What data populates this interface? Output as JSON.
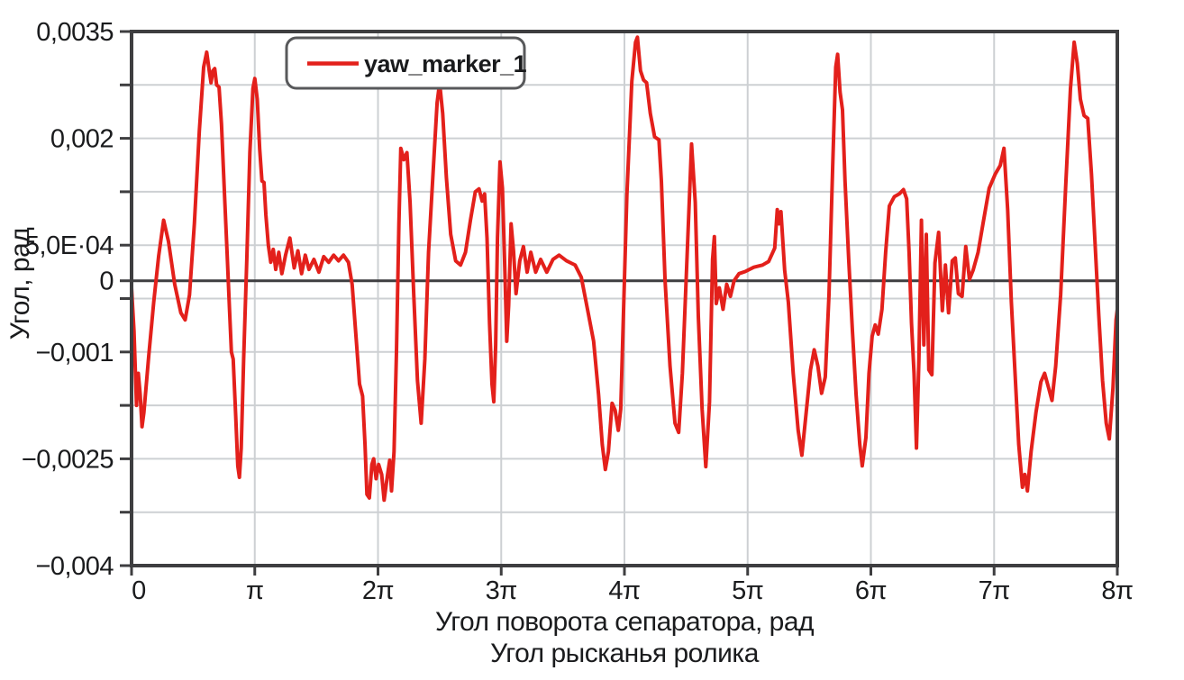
{
  "figure": {
    "background_color": "#ffffff",
    "text_color": "#1a1b1d",
    "frame_color": "#3e3e40",
    "gridline_color": "#cdd0d3"
  },
  "legend": {
    "label": "yaw_marker_1",
    "line_color": "#e3201b",
    "border_color": "#58595b",
    "fill": "#ffffff"
  },
  "chart_data": {
    "type": "line",
    "title": "",
    "xlabel_line1": "Угол поворота сепаратора, рад",
    "xlabel_line2": "Угол рысканья ролика",
    "ylabel": "Угол, рад",
    "x_unit": "multiples of π (rad)",
    "y_unit": "1e-3 rad",
    "xlim_pi": [
      0,
      8
    ],
    "ylim": [
      -4.0,
      3.5
    ],
    "grid": true,
    "y_gridline_step": 0.75,
    "legend_position": "top-left-inside",
    "x_ticks": [
      {
        "v": 0,
        "label": "0"
      },
      {
        "v": 1,
        "label": "π"
      },
      {
        "v": 2,
        "label": "2π"
      },
      {
        "v": 3,
        "label": "3π"
      },
      {
        "v": 4,
        "label": "4π"
      },
      {
        "v": 5,
        "label": "5π"
      },
      {
        "v": 6,
        "label": "6π"
      },
      {
        "v": 7,
        "label": "7π"
      },
      {
        "v": 8,
        "label": "8π"
      }
    ],
    "y_ticks": [
      {
        "v": 3.5,
        "label": "0,0035"
      },
      {
        "v": 2.75,
        "label": ""
      },
      {
        "v": 2.0,
        "label": "0,002"
      },
      {
        "v": 1.25,
        "label": ""
      },
      {
        "v": 0.5,
        "label": "5,0E·04"
      },
      {
        "v": 0.0,
        "label": "0",
        "zero_line": true
      },
      {
        "v": -0.25,
        "label": ""
      },
      {
        "v": -1.0,
        "label": "−0,001"
      },
      {
        "v": -1.75,
        "label": ""
      },
      {
        "v": -2.5,
        "label": "−0,0025"
      },
      {
        "v": -3.25,
        "label": ""
      },
      {
        "v": -4.0,
        "label": "−0,004"
      }
    ],
    "series": [
      {
        "name": "yaw_marker_1",
        "color": "#e3201b",
        "stroke_width": 4,
        "points": [
          [
            0.0,
            -0.1
          ],
          [
            0.02,
            -0.7
          ],
          [
            0.04,
            -1.75
          ],
          [
            0.055,
            -1.3
          ],
          [
            0.07,
            -1.6
          ],
          [
            0.085,
            -2.05
          ],
          [
            0.1,
            -1.85
          ],
          [
            0.14,
            -1.05
          ],
          [
            0.18,
            -0.3
          ],
          [
            0.22,
            0.35
          ],
          [
            0.26,
            0.85
          ],
          [
            0.3,
            0.55
          ],
          [
            0.35,
            -0.05
          ],
          [
            0.4,
            -0.45
          ],
          [
            0.435,
            -0.55
          ],
          [
            0.47,
            -0.2
          ],
          [
            0.51,
            0.8
          ],
          [
            0.55,
            2.1
          ],
          [
            0.585,
            3.0
          ],
          [
            0.61,
            3.21
          ],
          [
            0.63,
            2.95
          ],
          [
            0.645,
            2.78
          ],
          [
            0.66,
            2.95
          ],
          [
            0.675,
            2.98
          ],
          [
            0.69,
            2.75
          ],
          [
            0.71,
            2.72
          ],
          [
            0.73,
            2.2
          ],
          [
            0.755,
            1.2
          ],
          [
            0.775,
            0.4
          ],
          [
            0.795,
            -0.4
          ],
          [
            0.81,
            -1.0
          ],
          [
            0.825,
            -1.1
          ],
          [
            0.845,
            -1.9
          ],
          [
            0.862,
            -2.6
          ],
          [
            0.875,
            -2.76
          ],
          [
            0.89,
            -2.35
          ],
          [
            0.91,
            -1.1
          ],
          [
            0.935,
            0.3
          ],
          [
            0.96,
            1.8
          ],
          [
            0.985,
            2.7
          ],
          [
            1.0,
            2.84
          ],
          [
            1.02,
            2.55
          ],
          [
            1.04,
            1.85
          ],
          [
            1.058,
            1.4
          ],
          [
            1.075,
            1.38
          ],
          [
            1.09,
            0.92
          ],
          [
            1.11,
            0.5
          ],
          [
            1.13,
            0.26
          ],
          [
            1.15,
            0.44
          ],
          [
            1.17,
            0.16
          ],
          [
            1.195,
            0.4
          ],
          [
            1.22,
            0.1
          ],
          [
            1.25,
            0.36
          ],
          [
            1.285,
            0.6
          ],
          [
            1.32,
            0.18
          ],
          [
            1.35,
            0.42
          ],
          [
            1.38,
            0.1
          ],
          [
            1.41,
            0.36
          ],
          [
            1.44,
            0.16
          ],
          [
            1.48,
            0.3
          ],
          [
            1.52,
            0.12
          ],
          [
            1.56,
            0.34
          ],
          [
            1.6,
            0.26
          ],
          [
            1.64,
            0.36
          ],
          [
            1.68,
            0.28
          ],
          [
            1.72,
            0.36
          ],
          [
            1.76,
            0.26
          ],
          [
            1.79,
            -0.05
          ],
          [
            1.82,
            -0.75
          ],
          [
            1.85,
            -1.45
          ],
          [
            1.875,
            -1.62
          ],
          [
            1.895,
            -2.3
          ],
          [
            1.91,
            -3.0
          ],
          [
            1.93,
            -3.05
          ],
          [
            1.95,
            -2.58
          ],
          [
            1.965,
            -2.5
          ],
          [
            1.985,
            -2.78
          ],
          [
            2.005,
            -2.58
          ],
          [
            2.03,
            -2.72
          ],
          [
            2.05,
            -3.08
          ],
          [
            2.075,
            -2.75
          ],
          [
            2.095,
            -2.52
          ],
          [
            2.11,
            -2.95
          ],
          [
            2.13,
            -2.4
          ],
          [
            2.15,
            -1.0
          ],
          [
            2.17,
            0.8
          ],
          [
            2.185,
            1.86
          ],
          [
            2.21,
            1.7
          ],
          [
            2.235,
            1.8
          ],
          [
            2.26,
            1.1
          ],
          [
            2.29,
            -0.2
          ],
          [
            2.32,
            -1.4
          ],
          [
            2.35,
            -2.0
          ],
          [
            2.38,
            -1.1
          ],
          [
            2.41,
            0.4
          ],
          [
            2.45,
            1.6
          ],
          [
            2.48,
            2.5
          ],
          [
            2.5,
            2.78
          ],
          [
            2.525,
            2.35
          ],
          [
            2.555,
            1.45
          ],
          [
            2.59,
            0.65
          ],
          [
            2.63,
            0.28
          ],
          [
            2.67,
            0.22
          ],
          [
            2.71,
            0.4
          ],
          [
            2.75,
            0.85
          ],
          [
            2.79,
            1.25
          ],
          [
            2.82,
            1.29
          ],
          [
            2.845,
            1.12
          ],
          [
            2.865,
            1.22
          ],
          [
            2.885,
            0.6
          ],
          [
            2.905,
            -0.6
          ],
          [
            2.925,
            -1.45
          ],
          [
            2.94,
            -1.7
          ],
          [
            2.955,
            -0.9
          ],
          [
            2.97,
            0.6
          ],
          [
            2.99,
            1.67
          ],
          [
            3.01,
            1.3
          ],
          [
            3.03,
            0.1
          ],
          [
            3.045,
            -0.85
          ],
          [
            3.06,
            -0.35
          ],
          [
            3.08,
            0.8
          ],
          [
            3.1,
            0.42
          ],
          [
            3.12,
            -0.18
          ],
          [
            3.15,
            0.28
          ],
          [
            3.18,
            0.48
          ],
          [
            3.21,
            0.12
          ],
          [
            3.24,
            0.4
          ],
          [
            3.28,
            0.12
          ],
          [
            3.32,
            0.3
          ],
          [
            3.37,
            0.12
          ],
          [
            3.42,
            0.3
          ],
          [
            3.47,
            0.36
          ],
          [
            3.53,
            0.28
          ],
          [
            3.6,
            0.22
          ],
          [
            3.65,
            0.05
          ],
          [
            3.7,
            -0.4
          ],
          [
            3.75,
            -0.85
          ],
          [
            3.79,
            -1.6
          ],
          [
            3.82,
            -2.3
          ],
          [
            3.845,
            -2.65
          ],
          [
            3.87,
            -2.4
          ],
          [
            3.9,
            -1.72
          ],
          [
            3.925,
            -1.82
          ],
          [
            3.95,
            -2.1
          ],
          [
            3.97,
            -1.8
          ],
          [
            3.99,
            -0.6
          ],
          [
            4.02,
            1.2
          ],
          [
            4.06,
            2.8
          ],
          [
            4.09,
            3.35
          ],
          [
            4.105,
            3.42
          ],
          [
            4.13,
            2.95
          ],
          [
            4.155,
            2.82
          ],
          [
            4.18,
            2.78
          ],
          [
            4.21,
            2.35
          ],
          [
            4.245,
            2.02
          ],
          [
            4.28,
            1.98
          ],
          [
            4.3,
            1.4
          ],
          [
            4.33,
            0.0
          ],
          [
            4.37,
            -1.2
          ],
          [
            4.41,
            -2.0
          ],
          [
            4.44,
            -2.13
          ],
          [
            4.47,
            -1.3
          ],
          [
            4.51,
            0.4
          ],
          [
            4.545,
            1.92
          ],
          [
            4.575,
            1.1
          ],
          [
            4.6,
            -0.5
          ],
          [
            4.63,
            -1.8
          ],
          [
            4.66,
            -2.61
          ],
          [
            4.69,
            -1.7
          ],
          [
            4.715,
            0.3
          ],
          [
            4.73,
            0.62
          ],
          [
            4.745,
            -0.32
          ],
          [
            4.77,
            -0.1
          ],
          [
            4.8,
            -0.4
          ],
          [
            4.83,
            -0.05
          ],
          [
            4.86,
            -0.22
          ],
          [
            4.89,
            0.0
          ],
          [
            4.93,
            0.1
          ],
          [
            4.98,
            0.13
          ],
          [
            5.05,
            0.19
          ],
          [
            5.12,
            0.22
          ],
          [
            5.17,
            0.27
          ],
          [
            5.22,
            0.46
          ],
          [
            5.24,
            1.0
          ],
          [
            5.255,
            0.8
          ],
          [
            5.27,
            0.97
          ],
          [
            5.3,
            0.15
          ],
          [
            5.33,
            -0.3
          ],
          [
            5.37,
            -1.3
          ],
          [
            5.41,
            -2.1
          ],
          [
            5.44,
            -2.45
          ],
          [
            5.475,
            -1.85
          ],
          [
            5.51,
            -1.25
          ],
          [
            5.54,
            -0.97
          ],
          [
            5.57,
            -1.2
          ],
          [
            5.6,
            -1.58
          ],
          [
            5.63,
            -1.35
          ],
          [
            5.66,
            -0.2
          ],
          [
            5.69,
            1.6
          ],
          [
            5.715,
            3.0
          ],
          [
            5.73,
            3.18
          ],
          [
            5.75,
            2.65
          ],
          [
            5.77,
            2.4
          ],
          [
            5.79,
            1.4
          ],
          [
            5.82,
            0.3
          ],
          [
            5.85,
            -0.7
          ],
          [
            5.88,
            -1.6
          ],
          [
            5.91,
            -2.3
          ],
          [
            5.93,
            -2.6
          ],
          [
            5.96,
            -2.2
          ],
          [
            5.985,
            -1.3
          ],
          [
            6.01,
            -0.78
          ],
          [
            6.035,
            -0.62
          ],
          [
            6.06,
            -0.75
          ],
          [
            6.09,
            -0.4
          ],
          [
            6.12,
            0.4
          ],
          [
            6.15,
            1.05
          ],
          [
            6.19,
            1.18
          ],
          [
            6.23,
            1.22
          ],
          [
            6.265,
            1.28
          ],
          [
            6.29,
            1.15
          ],
          [
            6.31,
            0.4
          ],
          [
            6.33,
            -0.6
          ],
          [
            6.35,
            -1.3
          ],
          [
            6.37,
            -2.35
          ],
          [
            6.39,
            -1.1
          ],
          [
            6.41,
            0.85
          ],
          [
            6.43,
            -0.9
          ],
          [
            6.45,
            0.65
          ],
          [
            6.47,
            -1.25
          ],
          [
            6.495,
            -1.32
          ],
          [
            6.52,
            0.25
          ],
          [
            6.55,
            0.68
          ],
          [
            6.58,
            -0.42
          ],
          [
            6.605,
            0.22
          ],
          [
            6.63,
            -0.45
          ],
          [
            6.66,
            0.28
          ],
          [
            6.685,
            0.32
          ],
          [
            6.71,
            -0.18
          ],
          [
            6.74,
            -0.22
          ],
          [
            6.77,
            0.48
          ],
          [
            6.8,
            0.02
          ],
          [
            6.83,
            0.15
          ],
          [
            6.87,
            0.4
          ],
          [
            6.91,
            0.8
          ],
          [
            6.96,
            1.3
          ],
          [
            7.01,
            1.5
          ],
          [
            7.05,
            1.62
          ],
          [
            7.08,
            1.86
          ],
          [
            7.11,
            1.0
          ],
          [
            7.14,
            -0.3
          ],
          [
            7.17,
            -1.3
          ],
          [
            7.2,
            -2.3
          ],
          [
            7.23,
            -2.9
          ],
          [
            7.25,
            -2.72
          ],
          [
            7.27,
            -2.95
          ],
          [
            7.3,
            -2.4
          ],
          [
            7.34,
            -1.85
          ],
          [
            7.38,
            -1.42
          ],
          [
            7.41,
            -1.3
          ],
          [
            7.445,
            -1.52
          ],
          [
            7.47,
            -1.68
          ],
          [
            7.5,
            -1.2
          ],
          [
            7.54,
            -0.2
          ],
          [
            7.58,
            1.3
          ],
          [
            7.62,
            2.7
          ],
          [
            7.65,
            3.35
          ],
          [
            7.675,
            3.05
          ],
          [
            7.7,
            2.55
          ],
          [
            7.73,
            2.32
          ],
          [
            7.76,
            2.28
          ],
          [
            7.79,
            1.5
          ],
          [
            7.82,
            0.5
          ],
          [
            7.85,
            -0.5
          ],
          [
            7.88,
            -1.4
          ],
          [
            7.91,
            -2.0
          ],
          [
            7.935,
            -2.22
          ],
          [
            7.965,
            -1.5
          ],
          [
            7.99,
            -0.55
          ],
          [
            8.0,
            -0.4
          ]
        ]
      }
    ]
  }
}
